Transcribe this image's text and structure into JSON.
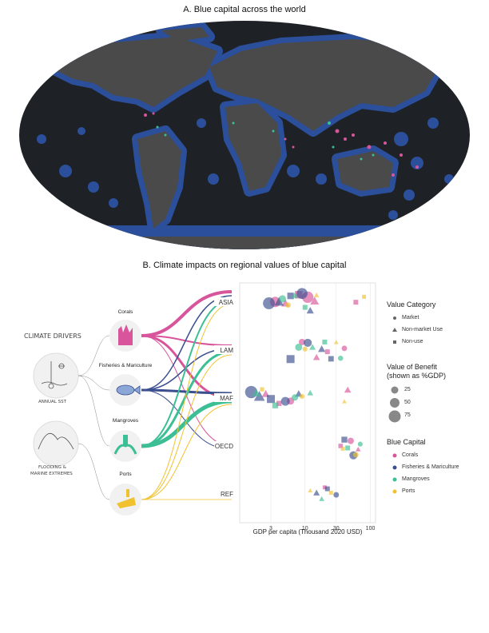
{
  "panel_a": {
    "title": "A.  Blue capital across the world"
  },
  "panel_b": {
    "title": "B. Climate impacts on regional values of blue capital",
    "climate_drivers": {
      "heading": "CLIMATE DRIVERS",
      "items": [
        "ANNUAL SST",
        "FLOODING &",
        "MARINE EXTREMES"
      ]
    },
    "capital_nodes": [
      "Corals",
      "Fisheries & Mariculture",
      "Mangroves",
      "Ports"
    ],
    "colors": {
      "corals": "#d8559b",
      "fisheries": "#3b4f8f",
      "mangroves": "#3cbf94",
      "ports": "#f0c230",
      "map_ocean": "#1e2226",
      "map_land": "#4a4a4a",
      "map_coast_buffer": "#2b4f9a"
    },
    "legend": {
      "value_category": {
        "title": "Value Category",
        "items": [
          "Market",
          "Non-market Use",
          "Non-use"
        ]
      },
      "value_of_benefit": {
        "title": "Value of Benefit",
        "subtitle": "(shown as %GDP)",
        "items": [
          "25",
          "50",
          "75"
        ]
      },
      "blue_capital": {
        "title": "Blue Capital",
        "items": [
          "Corals",
          "Fisheries & Mariculture",
          "Mangroves",
          "Ports"
        ]
      }
    }
  },
  "chart_data": {
    "type": "scatter",
    "xlabel": "GDP per capita (Thousand 2020 USD)",
    "x_scale": "log",
    "x_ticks": [
      "3",
      "10",
      "30",
      "100"
    ],
    "x_tick_values": [
      3,
      10,
      30,
      100
    ],
    "xlim": [
      1,
      120
    ],
    "regions": [
      "ASIA",
      "LAM",
      "MAF",
      "OECD",
      "REF"
    ],
    "series": [
      {
        "name": "Corals",
        "points": [
          {
            "region": "ASIA",
            "x": 3.5,
            "v": 40
          },
          {
            "region": "ASIA",
            "x": 5,
            "v": 20
          },
          {
            "region": "ASIA",
            "x": 8,
            "v": 30
          },
          {
            "region": "ASIA",
            "x": 11,
            "v": 50
          },
          {
            "region": "ASIA",
            "x": 14,
            "v": 25
          },
          {
            "region": "ASIA",
            "x": 60,
            "v": 8
          },
          {
            "region": "LAM",
            "x": 9,
            "v": 10
          },
          {
            "region": "LAM",
            "x": 15,
            "v": 12
          },
          {
            "region": "LAM",
            "x": 22,
            "v": 8
          },
          {
            "region": "LAM",
            "x": 40,
            "v": 6
          },
          {
            "region": "MAF",
            "x": 2.5,
            "v": 18
          },
          {
            "region": "MAF",
            "x": 4,
            "v": 10
          },
          {
            "region": "MAF",
            "x": 6,
            "v": 14
          },
          {
            "region": "MAF",
            "x": 45,
            "v": 12
          },
          {
            "region": "OECD",
            "x": 35,
            "v": 6
          },
          {
            "region": "OECD",
            "x": 50,
            "v": 10
          },
          {
            "region": "OECD",
            "x": 65,
            "v": 5
          },
          {
            "region": "REF",
            "x": 20,
            "v": 4
          }
        ]
      },
      {
        "name": "Fisheries & Mariculture",
        "points": [
          {
            "region": "ASIA",
            "x": 2.8,
            "v": 55
          },
          {
            "region": "ASIA",
            "x": 4,
            "v": 30
          },
          {
            "region": "ASIA",
            "x": 6,
            "v": 20
          },
          {
            "region": "ASIA",
            "x": 9,
            "v": 45
          },
          {
            "region": "ASIA",
            "x": 12,
            "v": 15
          },
          {
            "region": "LAM",
            "x": 6,
            "v": 35
          },
          {
            "region": "LAM",
            "x": 11,
            "v": 20
          },
          {
            "region": "LAM",
            "x": 18,
            "v": 15
          },
          {
            "region": "LAM",
            "x": 25,
            "v": 12
          },
          {
            "region": "MAF",
            "x": 1.5,
            "v": 60
          },
          {
            "region": "MAF",
            "x": 2,
            "v": 45
          },
          {
            "region": "MAF",
            "x": 3,
            "v": 35
          },
          {
            "region": "MAF",
            "x": 5,
            "v": 25
          },
          {
            "region": "MAF",
            "x": 8,
            "v": 15
          },
          {
            "region": "OECD",
            "x": 40,
            "v": 15
          },
          {
            "region": "OECD",
            "x": 55,
            "v": 20
          },
          {
            "region": "REF",
            "x": 15,
            "v": 10
          },
          {
            "region": "REF",
            "x": 22,
            "v": 8
          },
          {
            "region": "REF",
            "x": 30,
            "v": 6
          }
        ]
      },
      {
        "name": "Mangroves",
        "points": [
          {
            "region": "ASIA",
            "x": 4.5,
            "v": 15
          },
          {
            "region": "ASIA",
            "x": 7,
            "v": 10
          },
          {
            "region": "ASIA",
            "x": 10,
            "v": 8
          },
          {
            "region": "LAM",
            "x": 8,
            "v": 14
          },
          {
            "region": "LAM",
            "x": 13,
            "v": 10
          },
          {
            "region": "LAM",
            "x": 20,
            "v": 8
          },
          {
            "region": "LAM",
            "x": 35,
            "v": 5
          },
          {
            "region": "MAF",
            "x": 1.8,
            "v": 20
          },
          {
            "region": "MAF",
            "x": 3.5,
            "v": 15
          },
          {
            "region": "MAF",
            "x": 7,
            "v": 10
          },
          {
            "region": "MAF",
            "x": 12,
            "v": 8
          },
          {
            "region": "OECD",
            "x": 45,
            "v": 8
          },
          {
            "region": "OECD",
            "x": 70,
            "v": 4
          },
          {
            "region": "REF",
            "x": 18,
            "v": 5
          }
        ]
      },
      {
        "name": "Ports",
        "points": [
          {
            "region": "ASIA",
            "x": 5.5,
            "v": 6
          },
          {
            "region": "ASIA",
            "x": 15,
            "v": 5
          },
          {
            "region": "ASIA",
            "x": 80,
            "v": 4
          },
          {
            "region": "LAM",
            "x": 10,
            "v": 4
          },
          {
            "region": "LAM",
            "x": 30,
            "v": 3
          },
          {
            "region": "MAF",
            "x": 2.2,
            "v": 5
          },
          {
            "region": "MAF",
            "x": 9,
            "v": 4
          },
          {
            "region": "MAF",
            "x": 40,
            "v": 3
          },
          {
            "region": "OECD",
            "x": 38,
            "v": 4
          },
          {
            "region": "OECD",
            "x": 60,
            "v": 6
          },
          {
            "region": "REF",
            "x": 12,
            "v": 3
          },
          {
            "region": "REF",
            "x": 25,
            "v": 4
          }
        ]
      }
    ]
  }
}
